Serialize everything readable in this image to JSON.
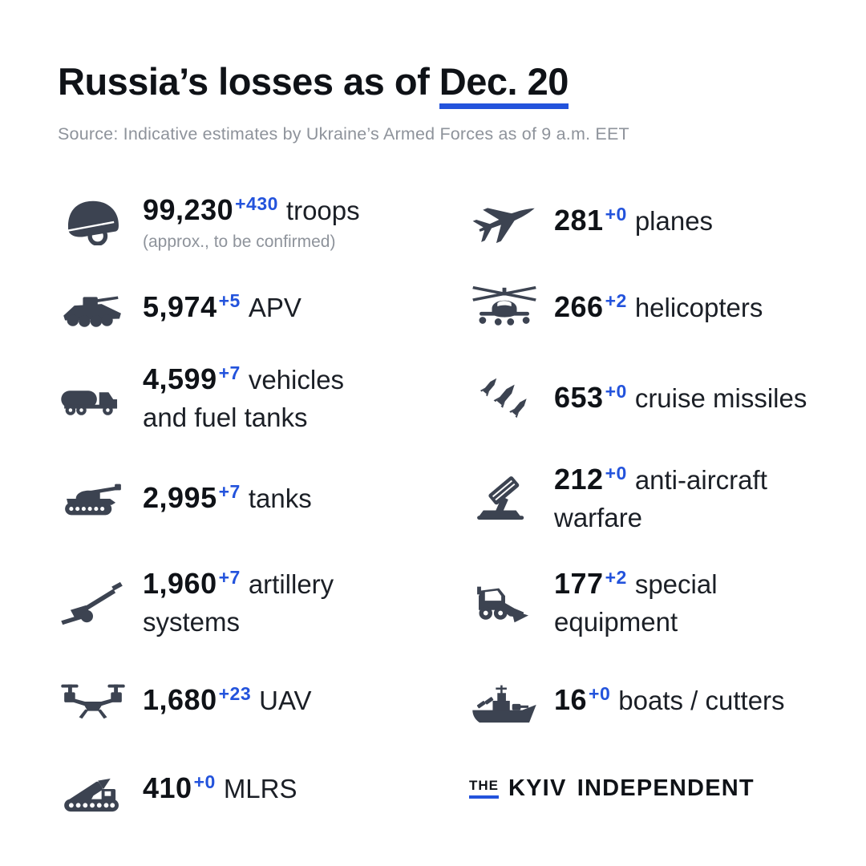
{
  "header": {
    "title_prefix": "Russia’s losses as of ",
    "title_date": "Dec. 20",
    "source": "Source: Indicative estimates by Ukraine’s Armed Forces as of 9 a.m. EET"
  },
  "colors": {
    "accent": "#2353DC",
    "icon": "#3C4351",
    "text": "#0F1217",
    "muted": "#8E939B"
  },
  "stats": {
    "left": [
      {
        "icon": "helmet-icon",
        "value": "99,230",
        "delta": "+430",
        "label": "troops",
        "note": "(approx., to be confirmed)"
      },
      {
        "icon": "apv-icon",
        "value": "5,974",
        "delta": "+5",
        "label": "APV"
      },
      {
        "icon": "fuel-truck-icon",
        "value": "4,599",
        "delta": "+7",
        "label": "vehicles\nand fuel tanks"
      },
      {
        "icon": "tank-icon",
        "value": "2,995",
        "delta": "+7",
        "label": "tanks"
      },
      {
        "icon": "artillery-icon",
        "value": "1,960",
        "delta": "+7",
        "label": "artillery\nsystems"
      },
      {
        "icon": "drone-icon",
        "value": "1,680",
        "delta": "+23",
        "label": "UAV"
      },
      {
        "icon": "mlrs-icon",
        "value": "410",
        "delta": "+0",
        "label": "MLRS"
      }
    ],
    "right": [
      {
        "icon": "jet-icon",
        "value": "281",
        "delta": "+0",
        "label": "planes"
      },
      {
        "icon": "helicopter-icon",
        "value": "266",
        "delta": "+2",
        "label": "helicopters"
      },
      {
        "icon": "missiles-icon",
        "value": "653",
        "delta": "+0",
        "label": "cruise missiles"
      },
      {
        "icon": "anti-aircraft-icon",
        "value": "212",
        "delta": "+0",
        "label": "anti-aircraft\nwarfare"
      },
      {
        "icon": "loader-icon",
        "value": "177",
        "delta": "+2",
        "label": "special\nequipment"
      },
      {
        "icon": "ship-icon",
        "value": "16",
        "delta": "+0",
        "label": "boats / cutters"
      }
    ]
  },
  "logo": {
    "the": "THE",
    "name": "KYIV INDEPENDENT"
  },
  "chart_data": {
    "type": "table",
    "title": "Russia’s losses as of Dec. 20",
    "categories": [
      "troops",
      "APV",
      "vehicles and fuel tanks",
      "tanks",
      "artillery systems",
      "UAV",
      "MLRS",
      "planes",
      "helicopters",
      "cruise missiles",
      "anti-aircraft warfare",
      "special equipment",
      "boats / cutters"
    ],
    "values": [
      99230,
      5974,
      4599,
      2995,
      1960,
      1680,
      410,
      281,
      266,
      653,
      212,
      177,
      16
    ],
    "daily_change": [
      430,
      5,
      7,
      7,
      7,
      23,
      0,
      0,
      2,
      0,
      0,
      2,
      0
    ],
    "note": "troops value approx., to be confirmed"
  }
}
